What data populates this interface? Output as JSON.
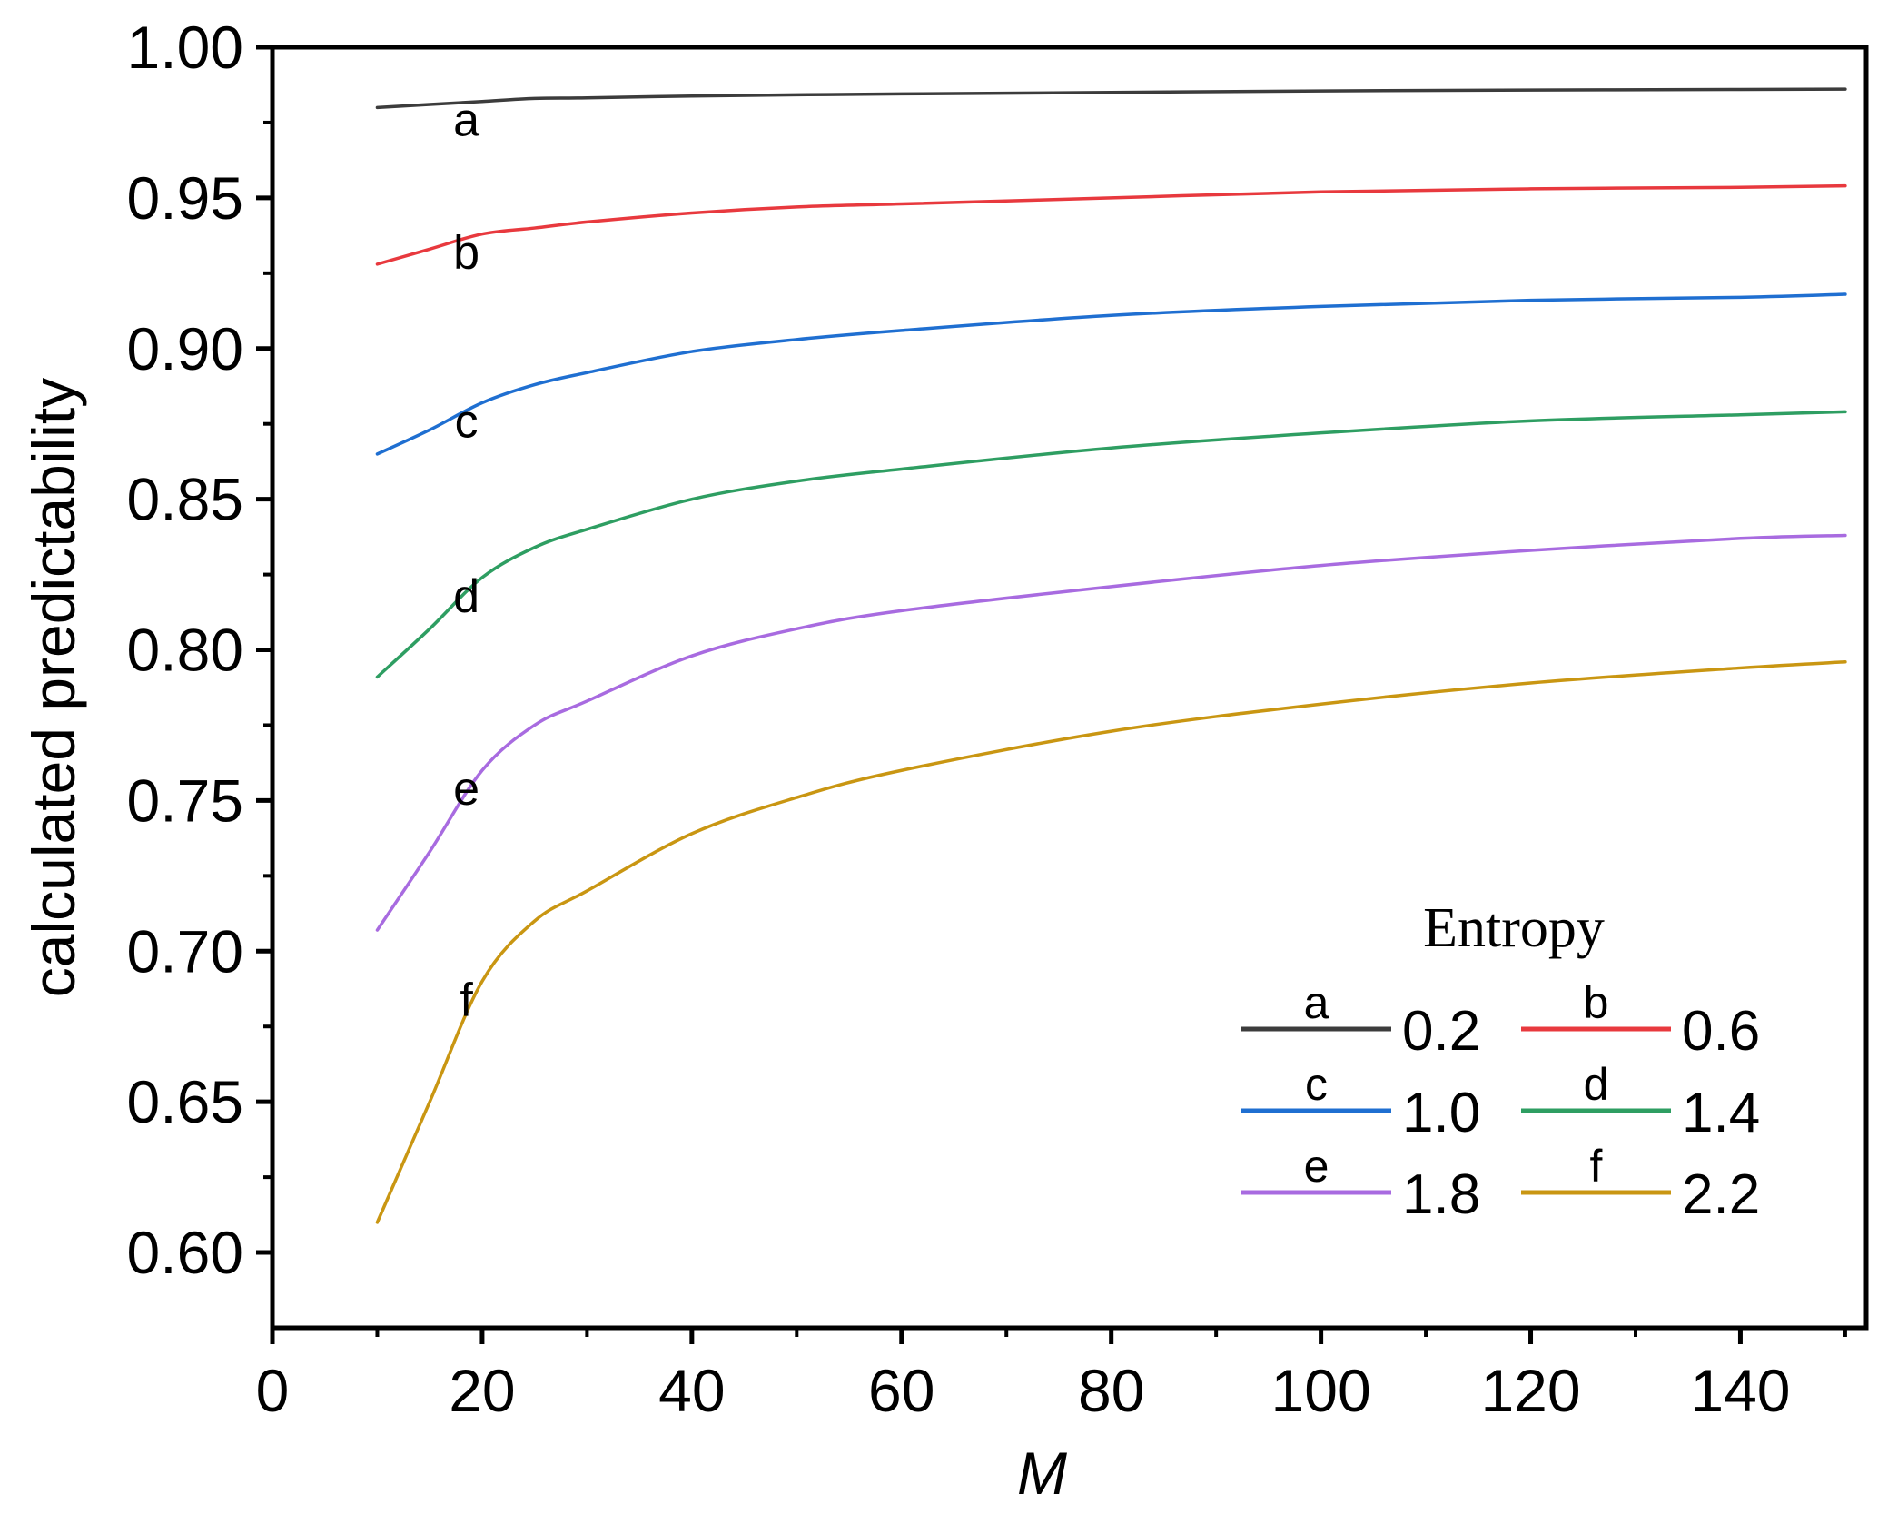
{
  "chart_data": {
    "type": "line",
    "title": "",
    "xlabel": "M",
    "ylabel": "calculated predictability",
    "xlim": [
      0,
      152
    ],
    "ylim": [
      0.575,
      1.0
    ],
    "xticks": [
      0,
      20,
      40,
      60,
      80,
      100,
      120,
      140
    ],
    "yticks": [
      0.6,
      0.65,
      0.7,
      0.75,
      0.8,
      0.85,
      0.9,
      0.95,
      1.0
    ],
    "xtick_labels": [
      "0",
      "20",
      "40",
      "60",
      "80",
      "100",
      "120",
      "140"
    ],
    "ytick_labels": [
      "0.60",
      "0.65",
      "0.70",
      "0.75",
      "0.80",
      "0.85",
      "0.90",
      "0.95",
      "1.00"
    ],
    "grid": false,
    "legend": {
      "title": "Entropy",
      "placement": "bottom-right"
    },
    "series": [
      {
        "id": "a",
        "label": "a",
        "entropy": "0.2",
        "color": "#3c3c3c",
        "x": [
          10,
          15,
          20,
          25,
          30,
          40,
          50,
          60,
          80,
          100,
          120,
          140,
          150
        ],
        "y": [
          0.98,
          0.981,
          0.982,
          0.983,
          0.9832,
          0.9838,
          0.9842,
          0.9845,
          0.985,
          0.9855,
          0.9858,
          0.986,
          0.9861
        ]
      },
      {
        "id": "b",
        "label": "b",
        "entropy": "0.6",
        "color": "#e8393e",
        "x": [
          10,
          15,
          20,
          25,
          30,
          40,
          50,
          60,
          80,
          100,
          120,
          140,
          150
        ],
        "y": [
          0.928,
          0.933,
          0.938,
          0.94,
          0.942,
          0.945,
          0.947,
          0.948,
          0.95,
          0.952,
          0.953,
          0.9535,
          0.954
        ]
      },
      {
        "id": "c",
        "label": "c",
        "entropy": "1.0",
        "color": "#1f6fd1",
        "x": [
          10,
          15,
          20,
          25,
          30,
          40,
          50,
          60,
          80,
          100,
          120,
          140,
          150
        ],
        "y": [
          0.865,
          0.873,
          0.882,
          0.888,
          0.892,
          0.899,
          0.903,
          0.906,
          0.911,
          0.914,
          0.916,
          0.917,
          0.918
        ]
      },
      {
        "id": "d",
        "label": "d",
        "entropy": "1.4",
        "color": "#2e9e62",
        "x": [
          10,
          15,
          20,
          25,
          30,
          40,
          50,
          60,
          80,
          100,
          120,
          140,
          150
        ],
        "y": [
          0.791,
          0.807,
          0.824,
          0.834,
          0.84,
          0.85,
          0.856,
          0.86,
          0.867,
          0.872,
          0.876,
          0.878,
          0.879
        ]
      },
      {
        "id": "e",
        "label": "e",
        "entropy": "1.8",
        "color": "#a86be0",
        "x": [
          10,
          15,
          20,
          25,
          30,
          40,
          50,
          60,
          80,
          100,
          120,
          140,
          150
        ],
        "y": [
          0.707,
          0.733,
          0.76,
          0.775,
          0.783,
          0.798,
          0.807,
          0.813,
          0.821,
          0.828,
          0.833,
          0.837,
          0.838
        ]
      },
      {
        "id": "f",
        "label": "f",
        "entropy": "2.2",
        "color": "#c99612",
        "x": [
          10,
          15,
          20,
          25,
          30,
          40,
          50,
          60,
          80,
          100,
          120,
          140,
          150
        ],
        "y": [
          0.61,
          0.65,
          0.69,
          0.71,
          0.72,
          0.739,
          0.751,
          0.76,
          0.773,
          0.782,
          0.789,
          0.794,
          0.796
        ]
      }
    ]
  }
}
